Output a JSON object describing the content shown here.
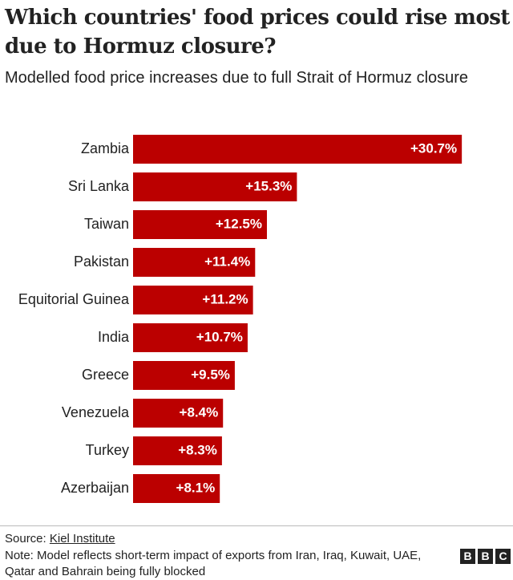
{
  "chart_data": {
    "type": "bar",
    "orientation": "horizontal",
    "title": "Which countries' food prices could rise most due to Hormuz closure?",
    "subtitle": "Modelled food price increases due to full Strait of Hormuz closure",
    "categories": [
      "Zambia",
      "Sri Lanka",
      "Taiwan",
      "Pakistan",
      "Equitorial Guinea",
      "India",
      "Greece",
      "Venezuela",
      "Turkey",
      "Azerbaijan"
    ],
    "values": [
      30.7,
      15.3,
      12.5,
      11.4,
      11.2,
      10.7,
      9.5,
      8.4,
      8.3,
      8.1
    ],
    "value_labels": [
      "+30.7%",
      "+15.3%",
      "+12.5%",
      "+11.4%",
      "+11.2%",
      "+10.7%",
      "+9.5%",
      "+8.4%",
      "+8.3%",
      "+8.1%"
    ],
    "color": "#bb0000",
    "source_label": "Source:",
    "source": "Kiel Institute",
    "note": "Note: Model reflects short-term impact of exports from Iran, Iraq, Kuwait, UAE, Qatar and Bahrain being fully blocked",
    "logo": [
      "B",
      "B",
      "C"
    ]
  }
}
